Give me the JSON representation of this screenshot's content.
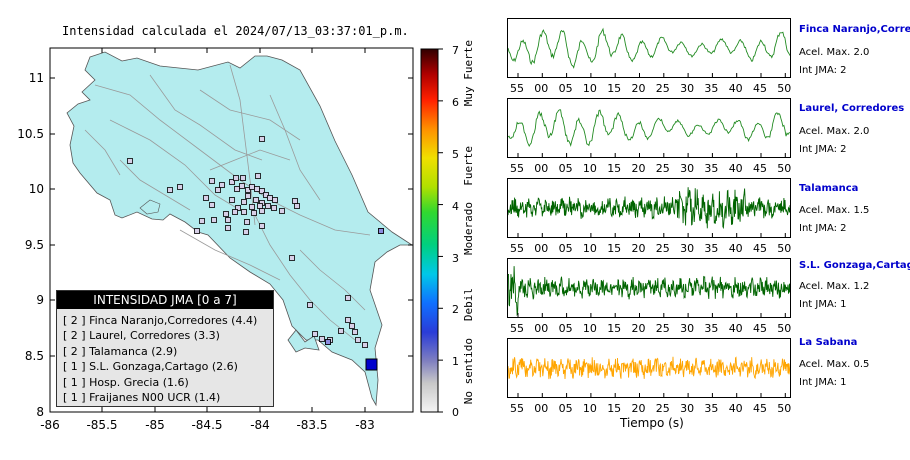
{
  "map": {
    "title": "Intensidad calculada el 2024/07/13_03:37:01_p.m.",
    "x_ticks": [
      "-86",
      "-85.5",
      "-85",
      "-84.5",
      "-84",
      "-83.5",
      "-83"
    ],
    "y_ticks": [
      "11",
      "10.5",
      "10",
      "9.5",
      "9",
      "8.5",
      "8"
    ],
    "land_color": "#b4ecee",
    "epicenter_color": "#0000cc"
  },
  "legend": {
    "header": "INTENSIDAD JMA [0 a 7]",
    "items": [
      "[ 2 ]  Finca Naranjo,Corredores (4.4)",
      "[ 2 ]  Laurel, Corredores (3.3)",
      "[ 2 ]  Talamanca (2.9)",
      "[ 1 ]  S.L. Gonzaga,Cartago (2.6)",
      "[ 1 ]  Hosp. Grecia (1.6)",
      "[ 1 ]  Fraijanes N00 UCR (1.4)"
    ]
  },
  "colorbar": {
    "ticks": [
      "7",
      "6",
      "5",
      "4",
      "3",
      "2",
      "1",
      "0"
    ],
    "categories": [
      "Muy Fuerte",
      "Fuerte",
      "Moderado",
      "Debil",
      "No sentido"
    ]
  },
  "waveforms": [
    {
      "name": "Finca Naranjo,Corredor",
      "accel": "Acel. Max. 2.0",
      "jma": "Int JMA: 2",
      "color": "#228b22",
      "style": "smooth"
    },
    {
      "name": "Laurel, Corredores",
      "accel": "Acel. Max. 2.0",
      "jma": "Int JMA: 2",
      "color": "#228b22",
      "style": "smooth"
    },
    {
      "name": "Talamanca",
      "accel": "Acel. Max. 1.5",
      "jma": "Int JMA: 2",
      "color": "#006400",
      "style": "noisy"
    },
    {
      "name": "S.L. Gonzaga,Cartago",
      "accel": "Acel. Max. 1.2",
      "jma": "Int JMA: 1",
      "color": "#006400",
      "style": "noisy"
    },
    {
      "name": "La Sabana",
      "accel": "Acel. Max. 0.5",
      "jma": "Int JMA: 1",
      "color": "#ffa500",
      "style": "noisy"
    }
  ],
  "time_ticks": [
    "55",
    "00",
    "05",
    "10",
    "15",
    "20",
    "25",
    "30",
    "35",
    "40",
    "45",
    "50"
  ],
  "time_axis_label": "Tiempo (s)"
}
